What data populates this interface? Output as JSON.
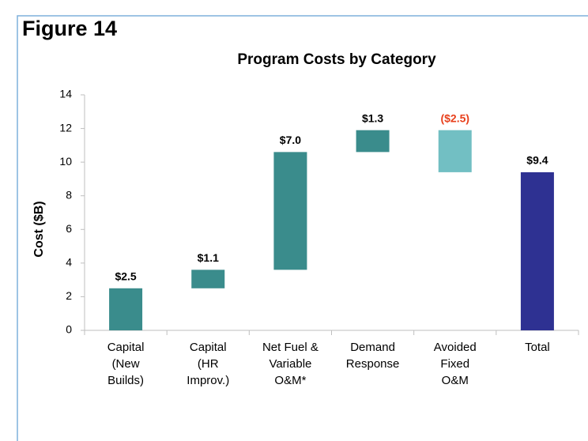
{
  "figure_label": "Figure 14",
  "chart_data": {
    "type": "waterfall",
    "title": "Program Costs by Category",
    "y_label": "Cost ($B)",
    "categories": [
      "Capital\n(New\nBuilds)",
      "Capital\n(HR\nImprov.)",
      "Net Fuel &\nVariable\nO&M*",
      "Demand\nResponse",
      "Avoided\nFixed\nO&M",
      "Total"
    ],
    "values": [
      2.5,
      1.1,
      7.0,
      1.3,
      -2.5,
      9.4
    ],
    "value_labels": [
      "$2.5",
      "$1.1",
      "$7.0",
      "$1.3",
      "($2.5)",
      "$9.4"
    ],
    "is_total": [
      false,
      false,
      false,
      false,
      false,
      true
    ],
    "colors": [
      "#3a8c8c",
      "#3a8c8c",
      "#3a8c8c",
      "#3a8c8c",
      "#72bfc3",
      "#2e3192"
    ],
    "label_colors": [
      "#000000",
      "#000000",
      "#000000",
      "#000000",
      "#e8401c",
      "#000000"
    ],
    "ylim": [
      0,
      14
    ],
    "yticks": [
      0,
      2,
      4,
      6,
      8,
      10,
      12,
      14
    ]
  }
}
